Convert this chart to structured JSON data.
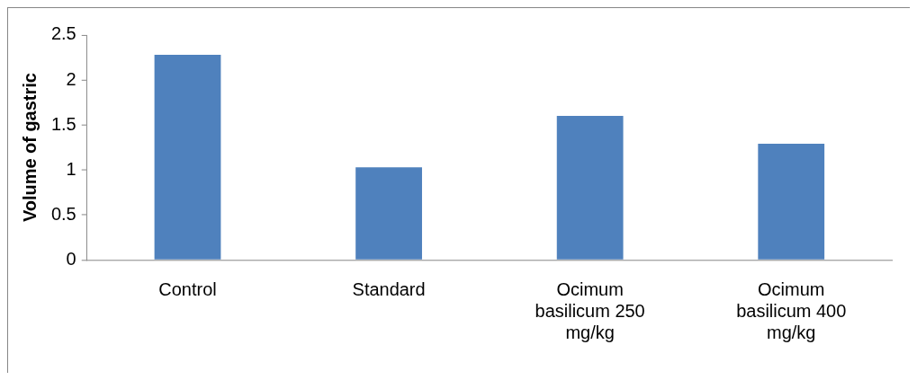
{
  "chart_data": {
    "type": "bar",
    "ylabel": "Volume of gastric",
    "categories": [
      "Control",
      "Standard",
      "Ocimum basilicum 250 mg/kg",
      "Ocimum basilicum 400 mg/kg"
    ],
    "values": [
      2.28,
      1.03,
      1.6,
      1.29
    ],
    "color": "#4f81bd",
    "ylim": [
      0,
      2.5
    ],
    "yticks": [
      0,
      0.5,
      1,
      1.5,
      2,
      2.5
    ],
    "grid": false,
    "legend": false
  }
}
